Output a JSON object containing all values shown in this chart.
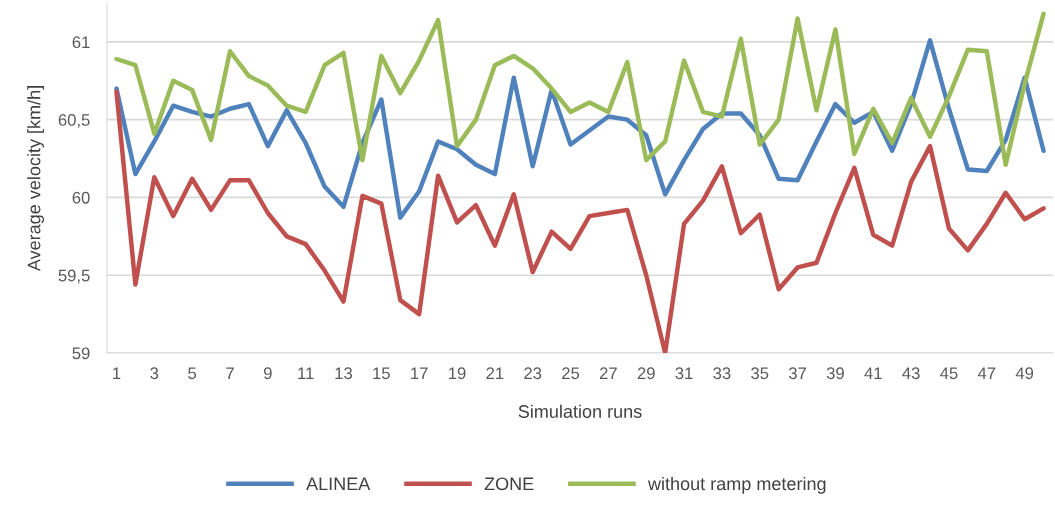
{
  "chart_data": {
    "type": "line",
    "xlabel": "Simulation runs",
    "ylabel": "Average velocity [km/h]",
    "categories": [
      "1",
      null,
      "3",
      null,
      "5",
      null,
      "7",
      null,
      "9",
      null,
      "11",
      null,
      "13",
      null,
      "15",
      null,
      "17",
      null,
      "19",
      null,
      "21",
      null,
      "23",
      null,
      "25",
      null,
      "27",
      null,
      "29",
      null,
      "31",
      null,
      "33",
      null,
      "35",
      null,
      "37",
      null,
      "39",
      null,
      "41",
      null,
      "43",
      null,
      "45",
      null,
      "47",
      null,
      "49",
      null
    ],
    "series": [
      {
        "name": "ALINEA",
        "color": "#4f81bd",
        "values": [
          60.7,
          60.15,
          60.36,
          60.59,
          60.55,
          60.52,
          60.57,
          60.6,
          60.33,
          60.56,
          60.35,
          60.07,
          59.94,
          60.35,
          60.63,
          59.87,
          60.04,
          60.36,
          60.31,
          60.21,
          60.15,
          60.77,
          60.2,
          60.69,
          60.34,
          60.43,
          60.52,
          60.5,
          60.4,
          60.02,
          60.24,
          60.44,
          60.54,
          60.54,
          60.4,
          60.12,
          60.11,
          60.36,
          60.6,
          60.48,
          60.55,
          60.3,
          60.6,
          61.01,
          60.57,
          60.18,
          60.17,
          60.37,
          60.77,
          60.3
        ]
      },
      {
        "name": "ZONE",
        "color": "#c0504d",
        "values": [
          60.68,
          59.44,
          60.13,
          59.88,
          60.12,
          59.92,
          60.11,
          60.11,
          59.9,
          59.75,
          59.7,
          59.53,
          59.33,
          60.01,
          59.96,
          59.34,
          59.25,
          60.14,
          59.84,
          59.95,
          59.69,
          60.02,
          59.52,
          59.78,
          59.67,
          59.88,
          59.9,
          59.92,
          59.5,
          59.0,
          59.83,
          59.98,
          60.2,
          59.77,
          59.89,
          59.41,
          59.55,
          59.58,
          59.9,
          60.19,
          59.76,
          59.69,
          60.1,
          60.33,
          59.8,
          59.66,
          59.83,
          60.03,
          59.86,
          59.93
        ]
      },
      {
        "name": "without ramp metering",
        "color": "#9bbb59",
        "values": [
          60.89,
          60.85,
          60.41,
          60.75,
          60.69,
          60.37,
          60.94,
          60.78,
          60.72,
          60.59,
          60.55,
          60.85,
          60.93,
          60.24,
          60.91,
          60.67,
          60.88,
          61.14,
          60.33,
          60.5,
          60.85,
          60.91,
          60.83,
          60.7,
          60.55,
          60.61,
          60.55,
          60.87,
          60.24,
          60.36,
          60.88,
          60.55,
          60.52,
          61.02,
          60.34,
          60.5,
          61.15,
          60.56,
          61.08,
          60.28,
          60.57,
          60.35,
          60.64,
          60.39,
          60.65,
          60.95,
          60.94,
          60.21,
          60.73,
          61.18
        ]
      }
    ],
    "ylim": [
      59,
      61.25
    ],
    "yticks": [
      59,
      {
        "value": 59.5,
        "label": "59,5"
      },
      60,
      {
        "value": 60.5,
        "label": "60,5"
      },
      61
    ],
    "grid": "y",
    "legend": "bottom",
    "marker": "none",
    "line_style": "solid"
  }
}
